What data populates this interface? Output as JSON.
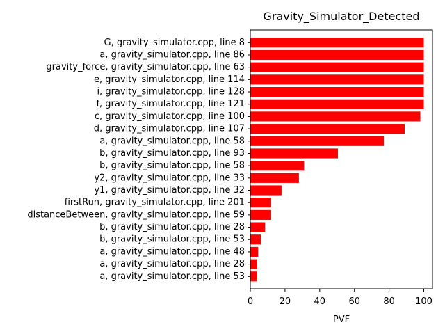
{
  "chart_data": {
    "type": "bar",
    "orientation": "horizontal",
    "title": "Gravity_Simulator_Detected",
    "xlabel": "PVF",
    "ylabel": "",
    "xlim": [
      0,
      105
    ],
    "xticks": [
      0,
      20,
      40,
      60,
      80,
      100
    ],
    "grid": false,
    "bar_color": "#ff0000",
    "categories": [
      "G, gravity_simulator.cpp, line 8",
      "a, gravity_simulator.cpp, line 86",
      "gravity_force, gravity_simulator.cpp, line 63",
      "e, gravity_simulator.cpp, line 114",
      "i, gravity_simulator.cpp, line 128",
      "f, gravity_simulator.cpp, line 121",
      "c, gravity_simulator.cpp, line 100",
      "d, gravity_simulator.cpp, line 107",
      "a, gravity_simulator.cpp, line 58",
      "b, gravity_simulator.cpp, line 93",
      "b, gravity_simulator.cpp, line 58",
      "y2, gravity_simulator.cpp, line 33",
      "y1, gravity_simulator.cpp, line 32",
      "firstRun, gravity_simulator.cpp, line 201",
      "distanceBetween, gravity_simulator.cpp, line 59",
      "b, gravity_simulator.cpp, line 28",
      "b, gravity_simulator.cpp, line 53",
      "a, gravity_simulator.cpp, line 48",
      "a, gravity_simulator.cpp, line 28",
      "a, gravity_simulator.cpp, line 53"
    ],
    "values": [
      100,
      100,
      100,
      100,
      100,
      100,
      98,
      89,
      77,
      50.5,
      31,
      28,
      18,
      12,
      12,
      8.5,
      6,
      4.5,
      4,
      4
    ]
  }
}
